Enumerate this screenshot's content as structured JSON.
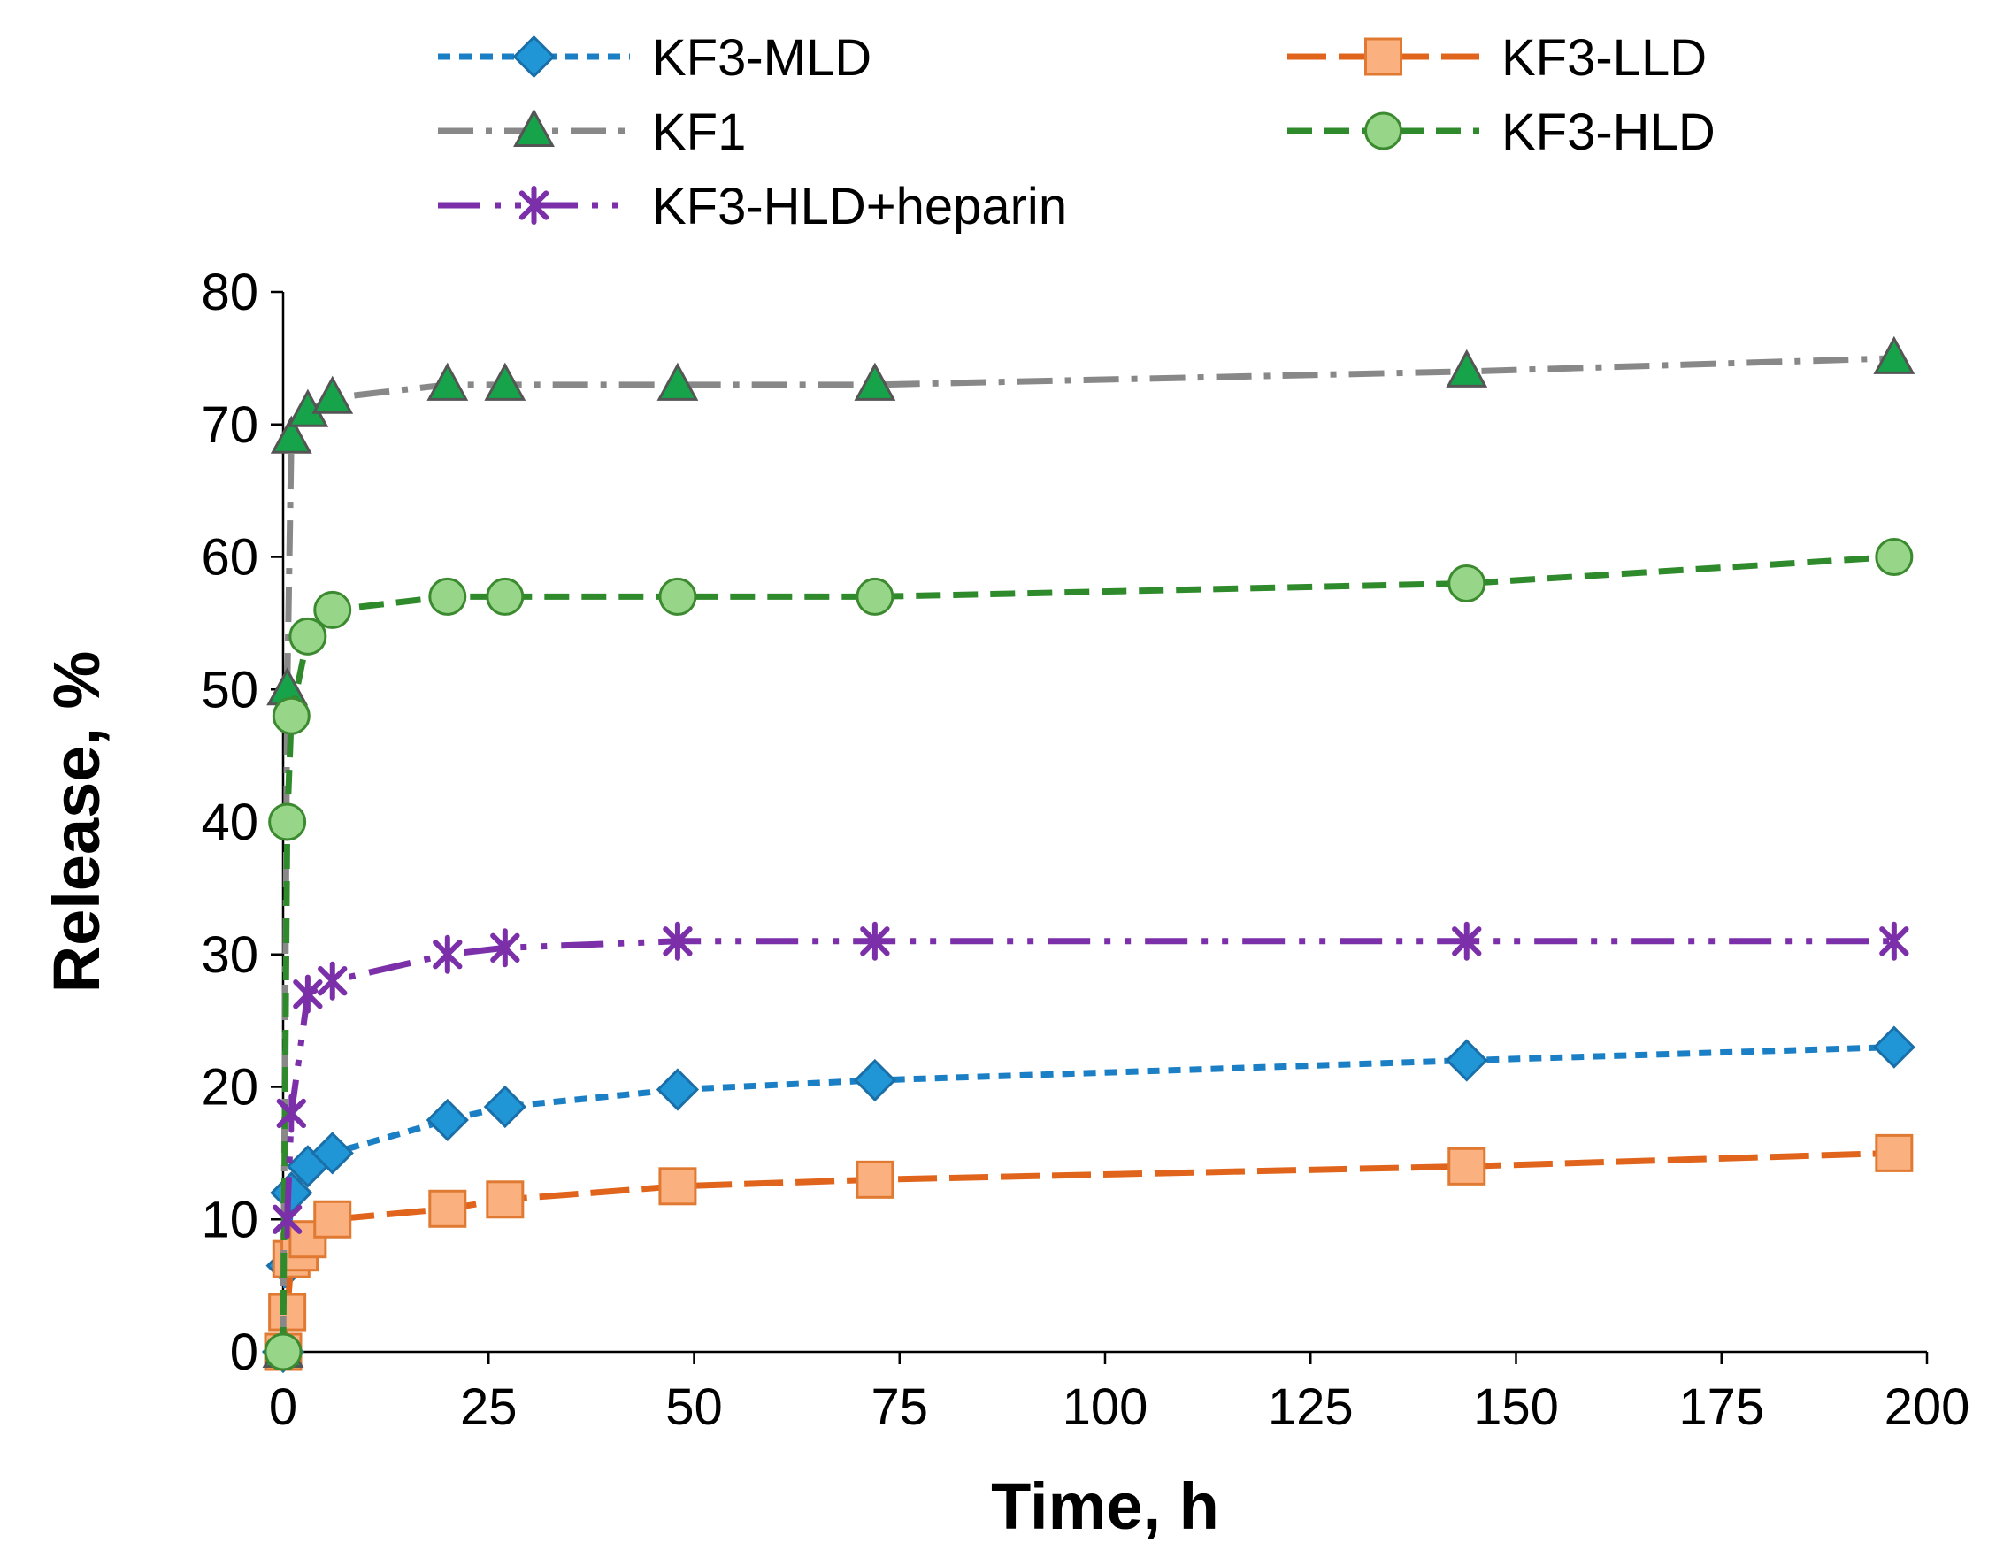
{
  "chart_data": {
    "type": "line",
    "title": "",
    "xlabel": "Time, h",
    "ylabel": "Release, %",
    "xlim": [
      0,
      200
    ],
    "ylim": [
      0,
      80
    ],
    "xticks": [
      0,
      25,
      50,
      75,
      100,
      125,
      150,
      175,
      200
    ],
    "yticks": [
      0,
      10,
      20,
      30,
      40,
      50,
      60,
      70,
      80
    ],
    "grid": false,
    "legend_position": "top",
    "series": [
      {
        "name": "KF3-MLD",
        "color": "#1a7fc4",
        "marker_fill": "#2196d6",
        "marker_stroke": "#1a6fa8",
        "marker": "diamond",
        "dash": "short-dash",
        "x": [
          0,
          0.5,
          1,
          3,
          6,
          20,
          27,
          48,
          72,
          144,
          196
        ],
        "y": [
          0,
          6.5,
          12,
          14,
          15,
          17.5,
          18.5,
          19.8,
          20.5,
          22,
          23
        ]
      },
      {
        "name": "KF3-LLD",
        "color": "#e0641b",
        "marker_fill": "#fbb07f",
        "marker_stroke": "#e07a32",
        "marker": "square",
        "dash": "long-dash",
        "x": [
          0,
          0.5,
          1,
          2,
          3,
          6,
          20,
          27,
          48,
          72,
          144,
          196
        ],
        "y": [
          0,
          3,
          7,
          7.5,
          8.5,
          10,
          10.8,
          11.5,
          12.5,
          13,
          14,
          15
        ]
      },
      {
        "name": "KF1",
        "color": "#888888",
        "marker_fill": "#17a34a",
        "marker_stroke": "#555555",
        "marker": "triangle",
        "dash": "dash-dot",
        "x": [
          0,
          0.5,
          1,
          3,
          6,
          20,
          27,
          48,
          72,
          144,
          196
        ],
        "y": [
          0,
          50,
          69,
          71,
          72,
          73,
          73,
          73,
          73,
          74,
          75
        ]
      },
      {
        "name": "KF3-HLD",
        "color": "#2f8a2c",
        "marker_fill": "#97d689",
        "marker_stroke": "#3c8a30",
        "marker": "circle",
        "dash": "dash",
        "x": [
          0,
          0.5,
          1,
          3,
          6,
          20,
          27,
          48,
          72,
          144,
          196
        ],
        "y": [
          0,
          40,
          48,
          54,
          56,
          57,
          57,
          57,
          57,
          58,
          60
        ]
      },
      {
        "name": "KF3-HLD+heparin",
        "color": "#7b2fa8",
        "marker_fill": "#7b2fa8",
        "marker_stroke": "#7b2fa8",
        "marker": "star",
        "dash": "dash-dot-dot",
        "x": [
          0.5,
          1,
          3,
          6,
          20,
          27,
          48,
          72,
          144,
          196
        ],
        "y": [
          10,
          18,
          27,
          28,
          30,
          30.5,
          31,
          31,
          31,
          31
        ]
      }
    ]
  }
}
